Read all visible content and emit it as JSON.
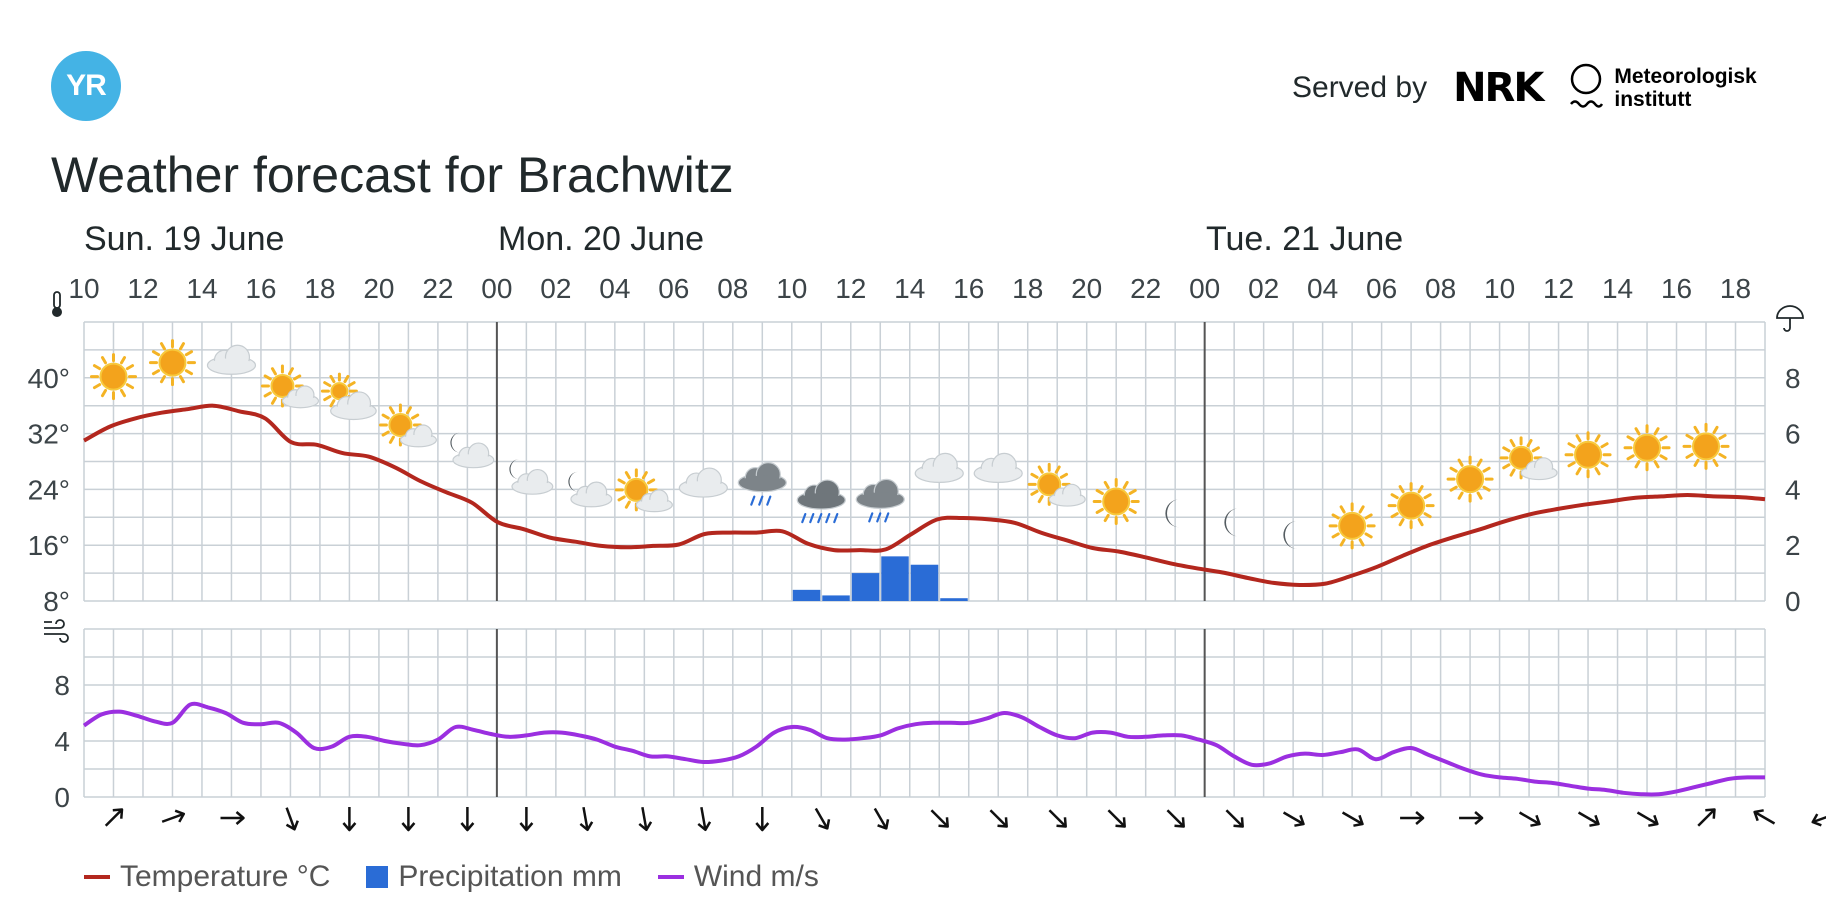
{
  "header": {
    "logo_text": "YR",
    "served_by": "Served by",
    "nrk_logo_text": "NRK",
    "met_line1": "Meteorologisk",
    "met_line2": "institutt",
    "title": "Weather forecast for Brachwitz"
  },
  "legend": {
    "temperature": "Temperature °C",
    "precipitation": "Precipitation mm",
    "wind": "Wind m/s"
  },
  "colors": {
    "temperature": "#b3271e",
    "precipitation": "#2a6cd6",
    "wind": "#9b2fe0",
    "grid": "#c9d0d6",
    "day_divider": "#555555"
  },
  "chart_data": [
    {
      "type": "line",
      "title": "",
      "days": [
        "Sun. 19 June",
        "Mon. 20 June",
        "Tue. 21 June"
      ],
      "hour_ticks": [
        "10",
        "12",
        "14",
        "16",
        "18",
        "20",
        "22",
        "00",
        "02",
        "04",
        "06",
        "08",
        "10",
        "12",
        "14",
        "16",
        "18",
        "20",
        "22",
        "00",
        "02",
        "04",
        "06",
        "08",
        "10",
        "12",
        "14",
        "16",
        "18"
      ],
      "y_left_ticks": [
        "8°",
        "16°",
        "24°",
        "32°",
        "40°"
      ],
      "y_left_range": [
        8,
        48
      ],
      "y_right_ticks": [
        "0",
        "2",
        "4",
        "6",
        "8"
      ],
      "y_right_range": [
        0,
        10
      ],
      "temperature": [
        31,
        33,
        34.2,
        35,
        35.5,
        36,
        35.2,
        34.2,
        30.8,
        30.4,
        29.2,
        28.7,
        27.2,
        25.2,
        23.6,
        22.1,
        19.3,
        18.3,
        17.1,
        16.5,
        15.9,
        15.7,
        15.9,
        16.1,
        17.6,
        17.8,
        17.8,
        18,
        16.2,
        15.3,
        15.3,
        15.4,
        17.6,
        19.7,
        19.9,
        19.7,
        19.2,
        17.8,
        16.7,
        15.6,
        15.1,
        14.3,
        13.4,
        12.7,
        12.1,
        11.3,
        10.6,
        10.3,
        10.5,
        11.6,
        12.9,
        14.5,
        16,
        17.2,
        18.3,
        19.5,
        20.5,
        21.2,
        21.8,
        22.3,
        22.8,
        23,
        23.2,
        23,
        22.9,
        22.6
      ],
      "precipitation": [
        0,
        0,
        0,
        0,
        0,
        0,
        0,
        0,
        0,
        0,
        0,
        0,
        0,
        0,
        0,
        0,
        0,
        0,
        0,
        0,
        0,
        0,
        0,
        0,
        0.4,
        0.2,
        1.0,
        1.6,
        1.3,
        0.1,
        0,
        0,
        0,
        0,
        0,
        0,
        0,
        0,
        0,
        0,
        0,
        0,
        0,
        0,
        0,
        0,
        0,
        0,
        0,
        0,
        0,
        0,
        0,
        0,
        0,
        0,
        0,
        0,
        0
      ],
      "weather_symbols": [
        "clear-sky",
        "clear-sky",
        "cloudy",
        "partly-cloudy-day",
        "fair-day",
        "partly-cloudy-day",
        "partly-cloudy-night",
        "partly-cloudy-night",
        "partly-cloudy-night",
        "partly-cloudy-day",
        "cloudy",
        "light-rain",
        "rain",
        "light-rain",
        "cloudy",
        "cloudy",
        "partly-cloudy-day",
        "clear-sky",
        "clear-night",
        "clear-night",
        "clear-night",
        "clear-sky",
        "clear-sky",
        "clear-sky",
        "partly-cloudy-day",
        "clear-sky",
        "clear-sky",
        "clear-sky"
      ]
    },
    {
      "type": "line",
      "title": "",
      "y_ticks": [
        "0",
        "4",
        "8"
      ],
      "y_range": [
        0,
        12
      ],
      "wind_speed": [
        5.1,
        5.9,
        6.1,
        5.8,
        5.4,
        5.3,
        6.6,
        6.4,
        6.0,
        5.3,
        5.2,
        5.3,
        4.6,
        3.5,
        3.6,
        4.3,
        4.3,
        4.0,
        3.8,
        3.7,
        4.1,
        5.0,
        4.8,
        4.5,
        4.3,
        4.4,
        4.6,
        4.6,
        4.4,
        4.1,
        3.6,
        3.3,
        2.9,
        2.9,
        2.7,
        2.5,
        2.6,
        2.9,
        3.6,
        4.6,
        5.0,
        4.8,
        4.2,
        4.1,
        4.2,
        4.4,
        4.9,
        5.2,
        5.3,
        5.3,
        5.3,
        5.6,
        6.0,
        5.7,
        5.0,
        4.4,
        4.2,
        4.6,
        4.6,
        4.3,
        4.3,
        4.4,
        4.4,
        4.1,
        3.7,
        2.9,
        2.3,
        2.4,
        2.9,
        3.1,
        3.0,
        3.2,
        3.4,
        2.7,
        3.2,
        3.5,
        3.0,
        2.5,
        2.0,
        1.6,
        1.4,
        1.3,
        1.1,
        1.0,
        0.8,
        0.6,
        0.5,
        0.3,
        0.2,
        0.2,
        0.4,
        0.7,
        1.0,
        1.3,
        1.4,
        1.4
      ],
      "wind_direction_deg": [
        225,
        250,
        270,
        340,
        360,
        360,
        360,
        360,
        350,
        350,
        350,
        360,
        330,
        330,
        315,
        315,
        315,
        315,
        315,
        315,
        300,
        300,
        270,
        270,
        300,
        300,
        300,
        225,
        120,
        70
      ]
    }
  ]
}
